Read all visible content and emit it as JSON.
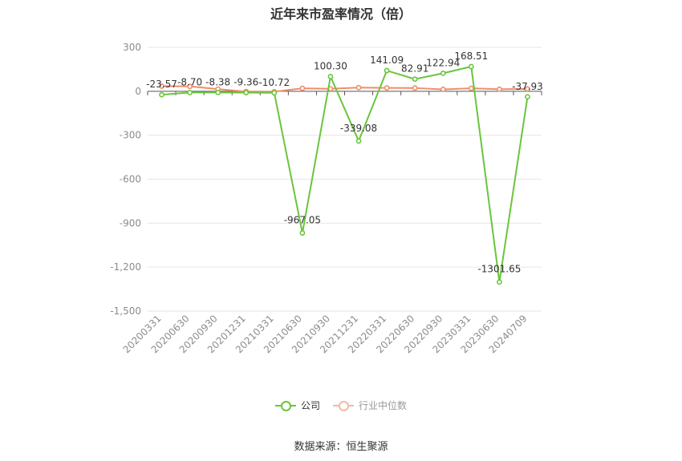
{
  "title": "近年来市盈率情况（倍）",
  "source": "数据来源：恒生聚源",
  "colors": {
    "company": "#6ac53c",
    "industry": "#ef8e6a",
    "grid": "#e6e6e6",
    "axis": "#555555"
  },
  "chart_data": {
    "type": "line",
    "title": "近年来市盈率情况（倍）",
    "xlabel": "",
    "ylabel": "",
    "ylim": [
      -1500,
      300
    ],
    "yticks": [
      300,
      0,
      -300,
      -600,
      -900,
      -1200,
      -1500
    ],
    "ytick_labels": [
      "300",
      "0",
      "-300",
      "-600",
      "-900",
      "-1,200",
      "-1,500"
    ],
    "grid": true,
    "legend_position": "bottom",
    "categories": [
      "20200331",
      "20200630",
      "20200930",
      "20201231",
      "20210331",
      "20210630",
      "20210930",
      "20211231",
      "20220331",
      "20220630",
      "20220930",
      "20230331",
      "20230630",
      "20240709"
    ],
    "series": [
      {
        "name": "公司",
        "values": [
          -23.57,
          -8.7,
          -8.38,
          -9.36,
          -10.72,
          -967.05,
          100.3,
          -339.08,
          141.09,
          82.91,
          122.94,
          168.51,
          -1301.65,
          -37.93
        ],
        "labels": [
          "-23.57",
          "-8.70",
          "-8.38",
          "-9.36",
          "-10.72",
          "-967.05",
          "100.30",
          "-339.08",
          "141.09",
          "82.91",
          "122.94",
          "168.51",
          "-1301.65",
          "-37.93"
        ]
      },
      {
        "name": "行业中位数",
        "values": [
          35,
          33,
          15,
          -2,
          -3,
          20,
          17,
          25,
          23,
          22,
          13,
          20,
          14,
          16
        ]
      }
    ]
  }
}
